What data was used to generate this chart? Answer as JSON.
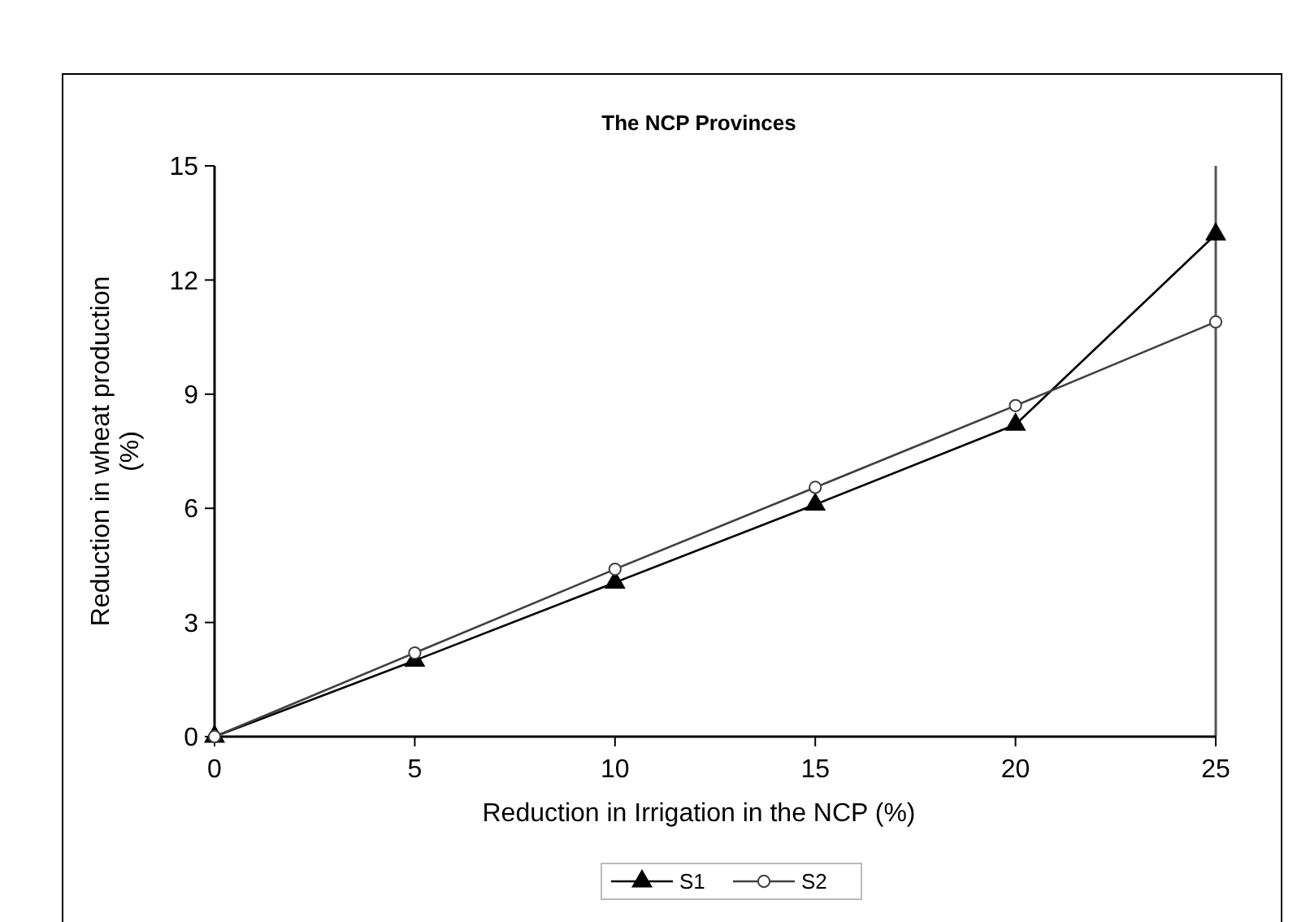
{
  "chart_data": {
    "type": "line",
    "title": "The NCP Provinces",
    "xlabel": "Reduction in Irrigation in the NCP (%)",
    "ylabel": "Reduction in wheat production (%)",
    "x": [
      0,
      5,
      10,
      15,
      20,
      25
    ],
    "series": [
      {
        "name": "S1",
        "color": "#000000",
        "marker": "triangle",
        "values": [
          0,
          2.0,
          4.05,
          6.1,
          8.2,
          13.2
        ]
      },
      {
        "name": "S2",
        "color": "#404040",
        "marker": "circle",
        "values": [
          0,
          2.2,
          4.4,
          6.55,
          8.7,
          10.9
        ]
      }
    ],
    "xlim": [
      0,
      25
    ],
    "xticks": [
      0,
      5,
      10,
      15,
      20,
      25
    ],
    "ylim": [
      0,
      15
    ],
    "yticks": [
      0,
      3,
      6,
      9,
      12,
      15
    ],
    "grid": false,
    "legend": "bottom",
    "line_style": "solid"
  }
}
